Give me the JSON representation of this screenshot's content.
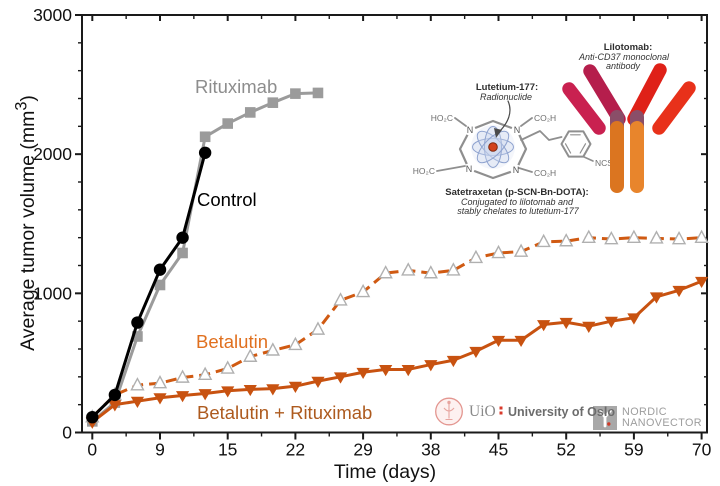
{
  "chart_data": {
    "type": "line",
    "title": "",
    "xlabel": "Time (days)",
    "ylabel_pre": "Average tumor volume (mm",
    "ylabel_sup": "3",
    "ylabel_post": ")",
    "x_tick_labels": [
      "0",
      "9",
      "15",
      "22",
      "29",
      "38",
      "45",
      "52",
      "59",
      "70"
    ],
    "y_tick_labels": [
      "0",
      "1000",
      "2000",
      "3000"
    ],
    "ylim": [
      0,
      3000
    ],
    "y_major_step": 1000,
    "y_minor_step": 200,
    "grid": "off",
    "x_days_est": [
      0,
      3,
      6,
      9,
      11,
      13,
      15,
      17,
      20,
      22,
      24,
      27,
      29,
      32,
      35,
      38,
      40,
      43,
      45,
      47,
      50,
      52,
      54,
      57,
      59,
      63,
      66,
      70
    ],
    "series": [
      {
        "name": "Rituximab",
        "color": "#9b9b9b",
        "marker": "square-filled",
        "line": "solid",
        "values": [
          80,
          215,
          690,
          1060,
          1290,
          2125,
          2220,
          2300,
          2370,
          2435,
          2440
        ]
      },
      {
        "name": "Betalutin",
        "color": "#d05a12",
        "marker": "triangle-up-open",
        "line": "dashed",
        "values": [
          110,
          270,
          340,
          355,
          395,
          415,
          460,
          545,
          590,
          630,
          740,
          950,
          1010,
          1145,
          1165,
          1145,
          1165,
          1255,
          1290,
          1300,
          1370,
          1375,
          1400,
          1390,
          1400,
          1395,
          1390,
          1400
        ]
      },
      {
        "name": "Betalutin + Rituximab",
        "color": "#c85210",
        "marker": "triangle-down-filled",
        "line": "solid",
        "values": [
          75,
          200,
          225,
          250,
          266,
          280,
          300,
          310,
          315,
          333,
          369,
          400,
          433,
          453,
          453,
          488,
          519,
          584,
          663,
          663,
          776,
          792,
          764,
          800,
          824,
          975,
          1022,
          1087
        ]
      },
      {
        "name": "Control",
        "color": "#000000",
        "marker": "circle-filled",
        "line": "solid",
        "values": [
          110,
          270,
          790,
          1170,
          1400,
          2010
        ]
      }
    ],
    "annotations": [
      {
        "id": "rituximab",
        "text": "Rituximab",
        "color": "#8d8d8d",
        "x": 195,
        "y": 93
      },
      {
        "id": "betalutin",
        "text": "Betalutin",
        "color": "#e0701f",
        "x": 196,
        "y": 348
      },
      {
        "id": "combo",
        "text": "Betalutin + Rituximab",
        "color": "#ad5a1e",
        "x": 197,
        "y": 419
      },
      {
        "id": "control",
        "text": "Control",
        "color": "#000000",
        "x": 197,
        "y": 206
      }
    ],
    "open_marker_stroke": "#b0b0b0",
    "axis_color": "#1a1a1a"
  },
  "illustration": {
    "lilotomab_title": "Lilotomab:",
    "lilotomab_line1": "Anti-CD37 monoclonal",
    "lilotomab_line2": "antibody",
    "lutetium_title": "Lutetium-177:",
    "lutetium_sub": "Radionuclide",
    "satetraxetan_title": "Satetraxetan (p-SCN-Bn-DOTA):",
    "satetraxetan_line1": "Conjugated to lilotomab and",
    "satetraxetan_line2": "stably chelates to lutetium-177",
    "chem_labels": {
      "top_left": "HO₂C",
      "top_right": "CO₂H",
      "bottom_left": "HO₂C",
      "bottom_right": "CO₂H",
      "ncs": "NCS",
      "n": "N"
    }
  },
  "logos": {
    "uio_abbr": "UiO",
    "uio_name": "University of Oslo",
    "nordic_line1": "NORDIC",
    "nordic_line2": "NANOVECTOR"
  }
}
